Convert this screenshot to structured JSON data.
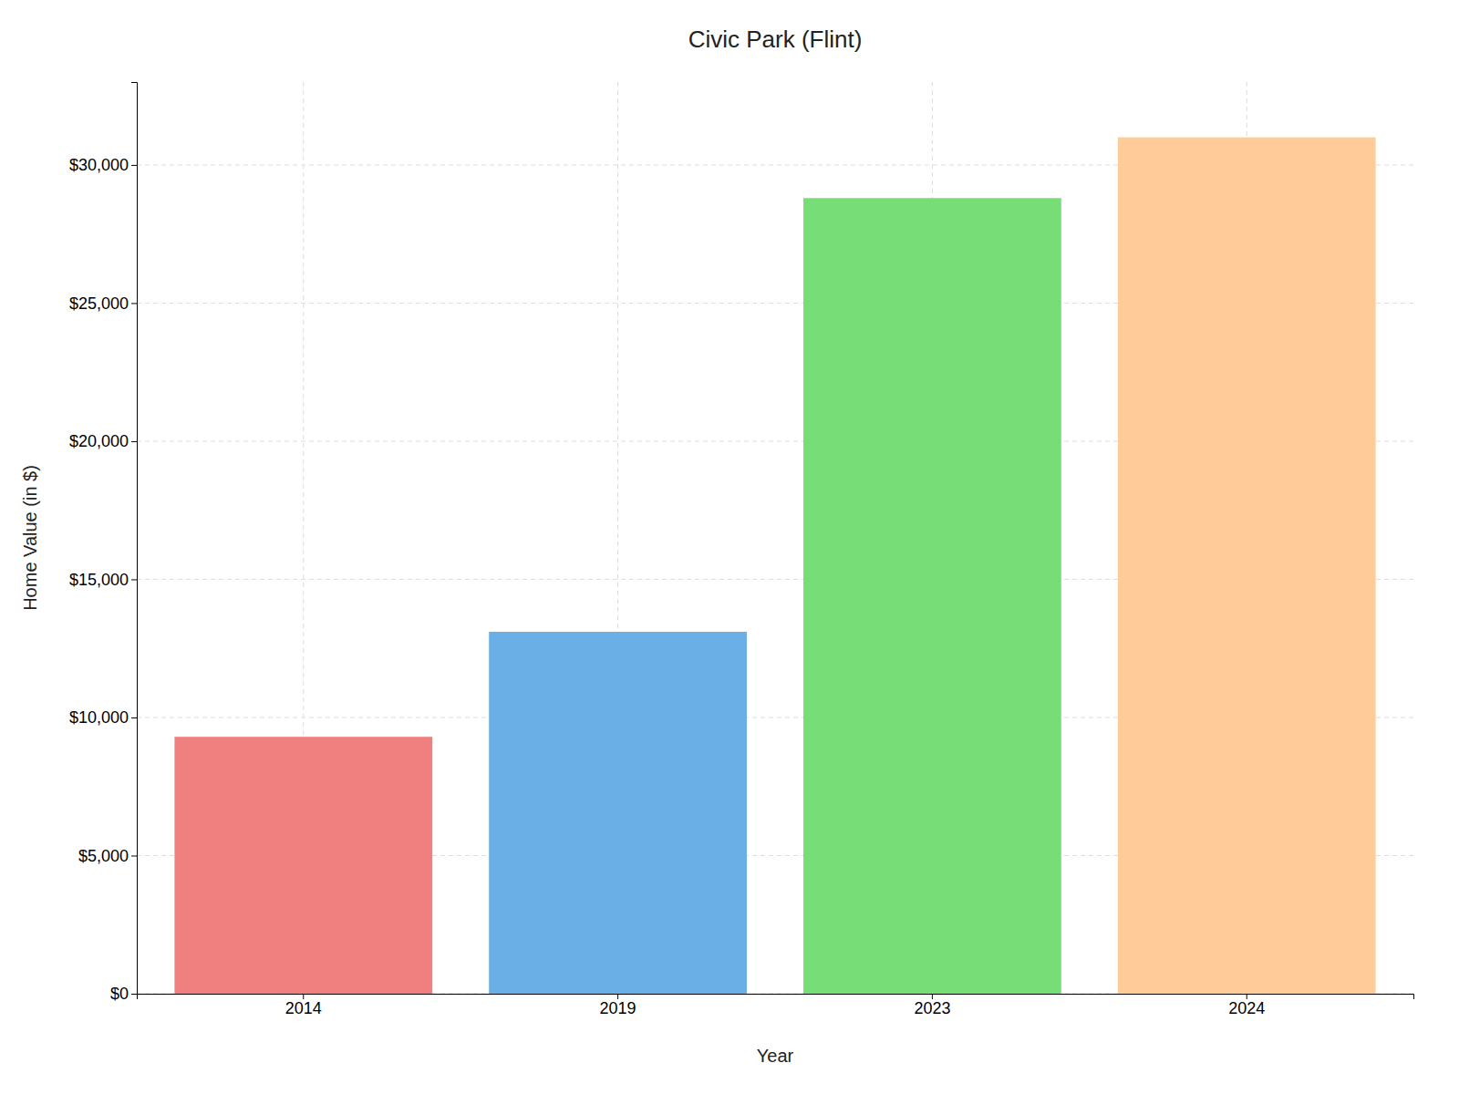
{
  "chart_data": {
    "type": "bar",
    "title": "Civic Park (Flint)",
    "xlabel": "Year",
    "ylabel": "Home Value (in $)",
    "categories": [
      "2014",
      "2019",
      "2023",
      "2024"
    ],
    "values": [
      9300,
      13100,
      28800,
      31000
    ],
    "colors": [
      "#F08080",
      "#6AAFE6",
      "#77DD77",
      "#FFCC99"
    ],
    "ylim": [
      0,
      33000
    ],
    "yticks": [
      {
        "value": 0,
        "label": "$0"
      },
      {
        "value": 5000,
        "label": "$5,000"
      },
      {
        "value": 10000,
        "label": "$10,000"
      },
      {
        "value": 15000,
        "label": "$15,000"
      },
      {
        "value": 20000,
        "label": "$20,000"
      },
      {
        "value": 25000,
        "label": "$25,000"
      },
      {
        "value": 30000,
        "label": "$30,000"
      }
    ],
    "grid": true
  }
}
